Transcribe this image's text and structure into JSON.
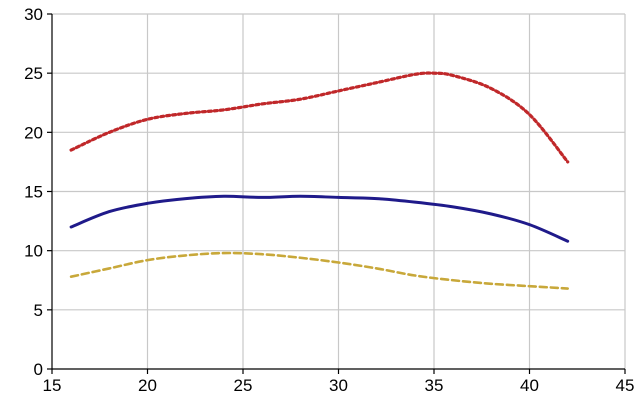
{
  "chart_data": {
    "type": "line",
    "title": "",
    "xlabel": "",
    "ylabel": "",
    "xlim": [
      15,
      45
    ],
    "ylim": [
      0,
      30
    ],
    "x_ticks": [
      15,
      20,
      25,
      30,
      35,
      40,
      45
    ],
    "y_ticks": [
      0,
      5,
      10,
      15,
      20,
      25,
      30
    ],
    "grid": true,
    "legend": "none",
    "series": [
      {
        "color": "#c0282a",
        "dash": "dotted",
        "x": [
          16,
          18,
          20,
          22,
          24,
          26,
          28,
          30,
          32,
          34,
          35,
          36,
          38,
          40,
          42
        ],
        "y": [
          18.5,
          20.0,
          21.1,
          21.6,
          21.9,
          22.4,
          22.8,
          23.5,
          24.2,
          24.9,
          25.0,
          24.8,
          23.7,
          21.5,
          17.5
        ]
      },
      {
        "color": "#1f1a8a",
        "dash": "solid",
        "x": [
          16,
          18,
          20,
          22,
          24,
          26,
          28,
          30,
          32,
          34,
          36,
          38,
          40,
          42
        ],
        "y": [
          12.0,
          13.3,
          14.0,
          14.4,
          14.6,
          14.5,
          14.6,
          14.5,
          14.4,
          14.1,
          13.7,
          13.1,
          12.2,
          10.8
        ]
      },
      {
        "color": "#c8a83a",
        "dash": "dashed",
        "x": [
          16,
          18,
          20,
          22,
          24,
          26,
          28,
          30,
          32,
          34,
          36,
          38,
          40,
          42
        ],
        "y": [
          7.8,
          8.5,
          9.2,
          9.6,
          9.8,
          9.7,
          9.4,
          9.0,
          8.5,
          7.9,
          7.5,
          7.2,
          7.0,
          6.8
        ]
      }
    ]
  }
}
